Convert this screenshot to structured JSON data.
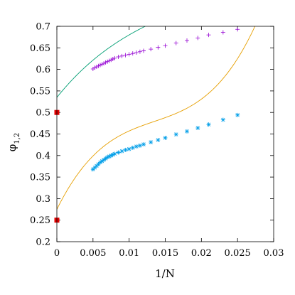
{
  "chart_data": {
    "type": "scatter",
    "title": "",
    "xlabel": "1/N",
    "ylabel_base": "φ",
    "ylabel_sub": "1,2",
    "xlim": [
      0,
      0.03
    ],
    "ylim": [
      0.2,
      0.7
    ],
    "x_ticks": [
      0,
      0.005,
      0.01,
      0.015,
      0.02,
      0.025,
      0.03
    ],
    "x_tick_labels": [
      "0",
      "0.005",
      "0.01",
      "0.015",
      "0.02",
      "0.025",
      "0.03"
    ],
    "y_ticks": [
      0.2,
      0.25,
      0.3,
      0.35,
      0.4,
      0.45,
      0.5,
      0.55,
      0.6,
      0.65,
      0.7
    ],
    "y_tick_labels": [
      "0.2",
      "0.25",
      "0.3",
      "0.35",
      "0.4",
      "0.45",
      "0.5",
      "0.55",
      "0.6",
      "0.65",
      "0.7"
    ],
    "grid": false,
    "legend": "none",
    "series": [
      {
        "marker": "plus",
        "color": "#9400d3",
        "points": [
          [
            0.005,
            0.601
          ],
          [
            0.00525,
            0.604
          ],
          [
            0.0055,
            0.606
          ],
          [
            0.00575,
            0.608
          ],
          [
            0.006,
            0.61
          ],
          [
            0.00625,
            0.612
          ],
          [
            0.0065,
            0.614
          ],
          [
            0.00675,
            0.616
          ],
          [
            0.007,
            0.618
          ],
          [
            0.00725,
            0.62
          ],
          [
            0.0075,
            0.622
          ],
          [
            0.00775,
            0.624
          ],
          [
            0.008,
            0.626
          ],
          [
            0.0085,
            0.629
          ],
          [
            0.009,
            0.631
          ],
          [
            0.0095,
            0.633
          ],
          [
            0.01,
            0.635
          ],
          [
            0.0105,
            0.637
          ],
          [
            0.011,
            0.639
          ],
          [
            0.0115,
            0.641
          ],
          [
            0.012,
            0.643
          ],
          [
            0.013,
            0.647
          ],
          [
            0.014,
            0.651
          ],
          [
            0.015,
            0.655
          ],
          [
            0.0165,
            0.661
          ],
          [
            0.018,
            0.667
          ],
          [
            0.0195,
            0.673
          ],
          [
            0.021,
            0.68
          ],
          [
            0.023,
            0.686
          ],
          [
            0.025,
            0.693
          ]
        ]
      },
      {
        "marker": "asterisk",
        "color": "#009ee8",
        "points": [
          [
            0.005,
            0.368
          ],
          [
            0.00525,
            0.372
          ],
          [
            0.0055,
            0.376
          ],
          [
            0.00575,
            0.38
          ],
          [
            0.006,
            0.384
          ],
          [
            0.00625,
            0.387
          ],
          [
            0.0065,
            0.39
          ],
          [
            0.00675,
            0.393
          ],
          [
            0.007,
            0.396
          ],
          [
            0.00725,
            0.398
          ],
          [
            0.0075,
            0.4
          ],
          [
            0.00775,
            0.402
          ],
          [
            0.008,
            0.404
          ],
          [
            0.0085,
            0.407
          ],
          [
            0.009,
            0.41
          ],
          [
            0.0095,
            0.413
          ],
          [
            0.01,
            0.415
          ],
          [
            0.0105,
            0.418
          ],
          [
            0.011,
            0.421
          ],
          [
            0.0115,
            0.423
          ],
          [
            0.012,
            0.426
          ],
          [
            0.013,
            0.431
          ],
          [
            0.014,
            0.436
          ],
          [
            0.015,
            0.441
          ],
          [
            0.0165,
            0.449
          ],
          [
            0.018,
            0.456
          ],
          [
            0.0195,
            0.464
          ],
          [
            0.021,
            0.472
          ],
          [
            0.023,
            0.483
          ],
          [
            0.025,
            0.494
          ]
        ]
      },
      {
        "marker": "square",
        "color": "#e00000",
        "points": [
          [
            0,
            0.5
          ],
          [
            0,
            0.25
          ]
        ]
      }
    ],
    "curves": [
      {
        "color": "#009e73",
        "coefficients": [
          0.535,
          20.8,
          -780,
          15000
        ]
      },
      {
        "color": "#e69f00",
        "coefficients": [
          0.275,
          34.0,
          -2100,
          52000
        ]
      }
    ]
  }
}
